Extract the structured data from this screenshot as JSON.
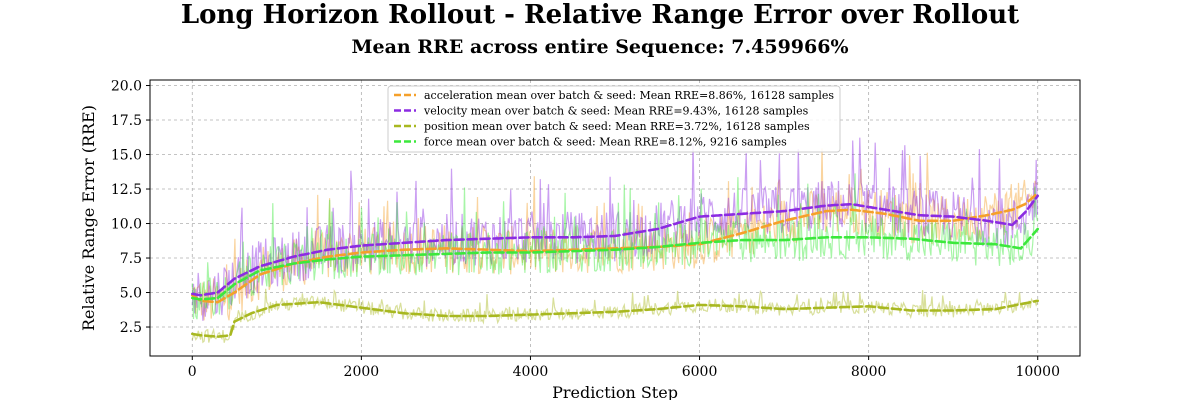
{
  "page": {
    "title": "Long Horizon Rollout - Relative Range Error over Rollout",
    "subtitle": "Mean RRE across entire Sequence: 7.459966%"
  },
  "chart_data": {
    "type": "line",
    "xlabel": "Prediction Step",
    "ylabel": "Relative Range Error (RRE)",
    "xlim": [
      -500,
      10500
    ],
    "ylim": [
      0.4,
      20.4
    ],
    "xticks": [
      0,
      2000,
      4000,
      6000,
      8000,
      10000
    ],
    "yticks": [
      2.5,
      5.0,
      7.5,
      10.0,
      12.5,
      15.0,
      17.5,
      20.0
    ],
    "grid": true,
    "legend_position": "top-center",
    "series": [
      {
        "name": "acceleration mean over batch & seed: Mean RRE=8.86%, 16128 samples",
        "color": "#f5a02a",
        "mean_x": [
          0,
          100,
          300,
          500,
          800,
          1200,
          1600,
          2000,
          2500,
          3000,
          3500,
          4000,
          4500,
          5000,
          5500,
          6000,
          6500,
          7000,
          7500,
          7800,
          8200,
          8600,
          9000,
          9400,
          9700,
          9850,
          10000
        ],
        "mean_y": [
          4.8,
          4.4,
          4.3,
          5.0,
          6.3,
          7.1,
          7.6,
          7.9,
          8.1,
          8.2,
          8.1,
          8.0,
          8.1,
          8.2,
          8.3,
          8.5,
          9.3,
          10.2,
          10.9,
          11.0,
          10.7,
          10.2,
          10.2,
          10.6,
          11.0,
          11.4,
          12.2
        ],
        "noise": 1.8
      },
      {
        "name": "velocity mean over batch & seed: Mean RRE=9.43%, 16128 samples",
        "color": "#8b2be2",
        "mean_x": [
          0,
          100,
          300,
          500,
          800,
          1200,
          1600,
          2000,
          2500,
          3000,
          3500,
          4000,
          4500,
          5000,
          5500,
          6000,
          6500,
          7000,
          7500,
          7800,
          8200,
          8600,
          9000,
          9400,
          9700,
          9850,
          10000
        ],
        "mean_y": [
          4.9,
          4.8,
          5.0,
          6.0,
          6.9,
          7.6,
          8.1,
          8.4,
          8.6,
          8.8,
          8.9,
          9.0,
          9.0,
          9.1,
          9.6,
          10.5,
          10.7,
          10.9,
          11.3,
          11.4,
          11.0,
          10.6,
          10.5,
          10.2,
          9.9,
          10.8,
          12.0
        ],
        "noise": 1.9
      },
      {
        "name": "position mean over batch & seed: Mean RRE=3.72%, 16128 samples",
        "color": "#a8b820",
        "mean_x": [
          0,
          100,
          300,
          450,
          500,
          700,
          1000,
          1500,
          2000,
          2500,
          3000,
          3500,
          4000,
          4500,
          5000,
          5500,
          6000,
          6500,
          7000,
          7500,
          8000,
          8500,
          9000,
          9500,
          10000
        ],
        "mean_y": [
          2.0,
          1.9,
          1.8,
          1.9,
          2.9,
          3.5,
          4.1,
          4.3,
          3.9,
          3.5,
          3.3,
          3.3,
          3.4,
          3.5,
          3.6,
          3.8,
          4.1,
          4.0,
          3.8,
          3.9,
          4.0,
          3.7,
          3.7,
          3.8,
          4.4
        ],
        "noise": 0.5
      },
      {
        "name": "force mean over batch & seed: Mean RRE=8.12%, 9216 samples",
        "color": "#3ce83c",
        "mean_x": [
          0,
          100,
          300,
          500,
          800,
          1200,
          1600,
          2000,
          2500,
          3000,
          3500,
          4000,
          4500,
          5000,
          5500,
          6000,
          6500,
          7000,
          7500,
          8000,
          8500,
          9000,
          9500,
          9800,
          10000
        ],
        "mean_y": [
          4.6,
          4.5,
          4.6,
          5.6,
          6.6,
          7.1,
          7.4,
          7.6,
          7.7,
          7.8,
          7.9,
          7.9,
          8.0,
          8.1,
          8.3,
          8.6,
          8.8,
          8.8,
          9.0,
          9.0,
          8.9,
          8.6,
          8.5,
          8.2,
          9.6
        ],
        "noise": 1.6
      }
    ]
  }
}
